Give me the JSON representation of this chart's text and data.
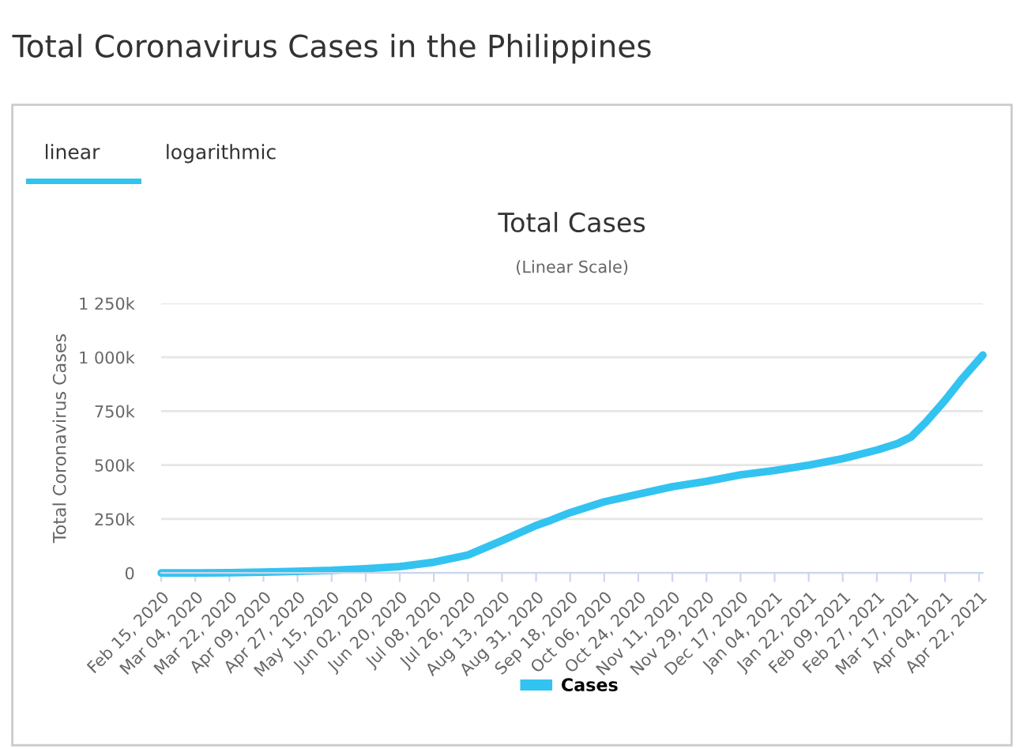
{
  "chart_data": {
    "type": "line",
    "title": "Total Cases",
    "subtitle": "(Linear Scale)",
    "ylabel": "Total Coronavirus Cases",
    "annotations": [
      "Total Coronavirus Cases in the Philippines",
      "linear",
      "logarithmic"
    ],
    "x": [
      "2020-02-15",
      "2020-03-04",
      "2020-03-22",
      "2020-04-09",
      "2020-04-27",
      "2020-05-15",
      "2020-06-02",
      "2020-06-20",
      "2020-07-08",
      "2020-07-26",
      "2020-08-13",
      "2020-08-31",
      "2020-09-08",
      "2020-09-18",
      "2020-10-06",
      "2020-10-24",
      "2020-11-11",
      "2020-11-29",
      "2020-12-17",
      "2021-01-04",
      "2021-01-22",
      "2021-02-09",
      "2021-02-27",
      "2021-03-10",
      "2021-03-17",
      "2021-03-25",
      "2021-04-04",
      "2021-04-13",
      "2021-04-24"
    ],
    "series": [
      {
        "name": "Cases",
        "color": "#33c3f0",
        "values": [
          0,
          0,
          1000,
          4000,
          8000,
          12000,
          20000,
          30000,
          50000,
          83000,
          150000,
          220000,
          245000,
          280000,
          330000,
          365000,
          400000,
          425000,
          455000,
          475000,
          500000,
          530000,
          570000,
          600000,
          630000,
          700000,
          800000,
          900000,
          1010000
        ]
      }
    ],
    "xlim": [
      "2020-02-15",
      "2021-04-24"
    ],
    "xticks": [
      {
        "value": "2020-02-15",
        "label": "Feb 15, 2020"
      },
      {
        "value": "2020-03-04",
        "label": "Mar 04, 2020"
      },
      {
        "value": "2020-03-22",
        "label": "Mar 22, 2020"
      },
      {
        "value": "2020-04-09",
        "label": "Apr 09, 2020"
      },
      {
        "value": "2020-04-27",
        "label": "Apr 27, 2020"
      },
      {
        "value": "2020-05-15",
        "label": "May 15, 2020"
      },
      {
        "value": "2020-06-02",
        "label": "Jun 02, 2020"
      },
      {
        "value": "2020-06-20",
        "label": "Jun 20, 2020"
      },
      {
        "value": "2020-07-08",
        "label": "Jul 08, 2020"
      },
      {
        "value": "2020-07-26",
        "label": "Jul 26, 2020"
      },
      {
        "value": "2020-08-13",
        "label": "Aug 13, 2020"
      },
      {
        "value": "2020-08-31",
        "label": "Aug 31, 2020"
      },
      {
        "value": "2020-09-18",
        "label": "Sep 18, 2020"
      },
      {
        "value": "2020-10-06",
        "label": "Oct 06, 2020"
      },
      {
        "value": "2020-10-24",
        "label": "Oct 24, 2020"
      },
      {
        "value": "2020-11-11",
        "label": "Nov 11, 2020"
      },
      {
        "value": "2020-11-29",
        "label": "Nov 29, 2020"
      },
      {
        "value": "2020-12-17",
        "label": "Dec 17, 2020"
      },
      {
        "value": "2021-01-04",
        "label": "Jan 04, 2021"
      },
      {
        "value": "2021-01-22",
        "label": "Jan 22, 2021"
      },
      {
        "value": "2021-02-09",
        "label": "Feb 09, 2021"
      },
      {
        "value": "2021-02-27",
        "label": "Feb 27, 2021"
      },
      {
        "value": "2021-03-17",
        "label": "Mar 17, 2021"
      },
      {
        "value": "2021-04-04",
        "label": "Apr 04, 2021"
      },
      {
        "value": "2021-04-22",
        "label": "Apr 22, 2021"
      }
    ],
    "ylim": [
      0,
      1250000
    ],
    "yticks": [
      {
        "value": 0,
        "label": "0"
      },
      {
        "value": 250000,
        "label": "250k"
      },
      {
        "value": 500000,
        "label": "500k"
      },
      {
        "value": 750000,
        "label": "750k"
      },
      {
        "value": 1000000,
        "label": "1 000k"
      },
      {
        "value": 1250000,
        "label": "1 250k"
      }
    ],
    "grid": "y",
    "legend": "bottom",
    "marker": "none",
    "line_style": "solid"
  }
}
